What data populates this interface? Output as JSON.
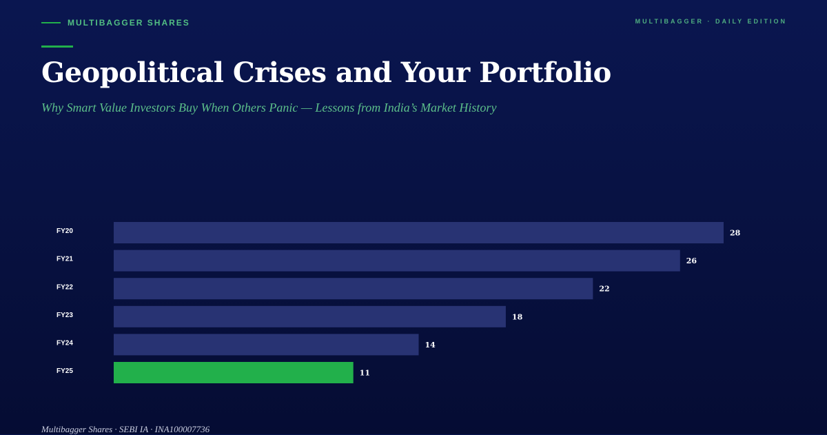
{
  "brand": {
    "name": "MULTIBAGGER SHARES",
    "edition": "MULTIBAGGER · DAILY EDITION"
  },
  "header": {
    "title": "Geopolitical Crises and Your Portfolio",
    "subtitle": "Why Smart Value Investors Buy When Others Panic — Lessons from India’s Market History"
  },
  "colors": {
    "background": "#081243",
    "bar": "#283373",
    "highlight_bar": "#22b04b",
    "accent": "#22b04b",
    "brand_text": "#52c083"
  },
  "chart_data": {
    "type": "bar",
    "orientation": "horizontal",
    "categories": [
      "FY20",
      "FY21",
      "FY22",
      "FY23",
      "FY24",
      "FY25"
    ],
    "values": [
      28,
      26,
      22,
      18,
      14,
      11
    ],
    "highlight": "FY25",
    "xlim": [
      0,
      28
    ],
    "grid": false,
    "legend": false
  },
  "footer": {
    "text": "Multibagger Shares · SEBI IA · INA100007736"
  }
}
